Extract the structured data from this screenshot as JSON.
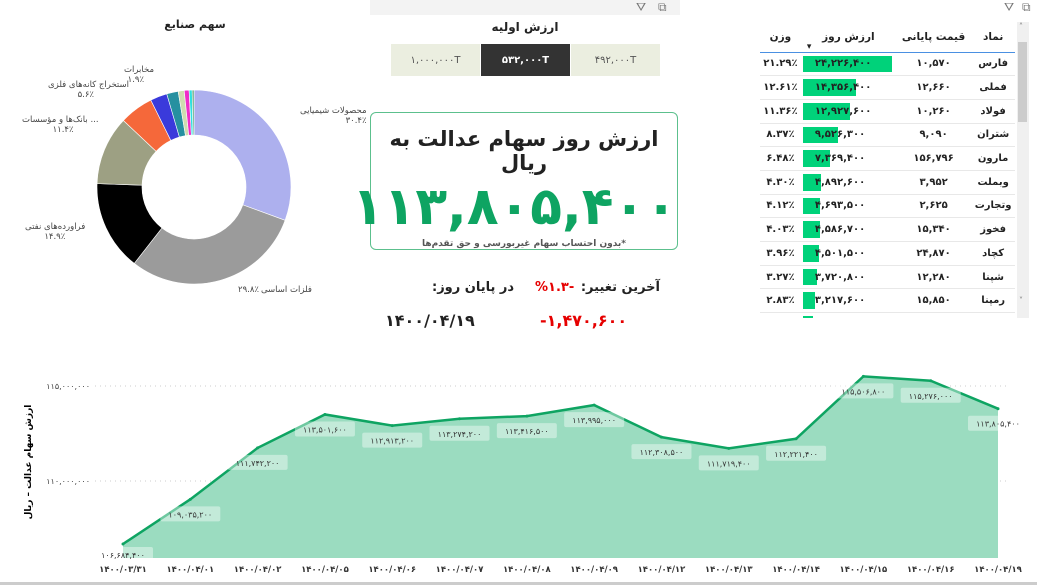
{
  "toolbar": {
    "icons": [
      "filter-icon",
      "focus-mode-icon"
    ]
  },
  "slicer": {
    "title": "ارزش اولیه",
    "options": [
      {
        "label": "۴۹۲,۰۰۰T",
        "selected": false
      },
      {
        "label": "۵۳۲,۰۰۰T",
        "selected": true
      },
      {
        "label": "۱,۰۰۰,۰۰۰T",
        "selected": false
      }
    ]
  },
  "kpi": {
    "title": "ارزش روز سهام عدالت به ریال",
    "value": "۱۱۳,۸۰۵,۴۰۰",
    "note": "*بدون احتساب سهام غیربورسی و حق تقدم‌ها",
    "accent": "#0ea462"
  },
  "change": {
    "last_change_label": "آخرین تغییر:",
    "last_change_pct": "%۱.۳-",
    "end_of_day_label": "در پایان روز:",
    "change_amount": "-۱,۴۷۰,۶۰۰",
    "date": "۱۴۰۰/۰۴/۱۹",
    "negative_color": "#e60000"
  },
  "pie": {
    "title": "سهم صنایع",
    "slices": [
      {
        "name": "محصولات شیمیایی",
        "pct": 30.4,
        "label": "۳۰.۴٪",
        "color": "#adb0ee"
      },
      {
        "name": "فلزات اساسی",
        "pct": 29.8,
        "label": "۲۹.۸٪",
        "color": "#9b9b9b"
      },
      {
        "name": "فراورده‌های نفتی",
        "pct": 14.9,
        "label": "۱۴.۹٪",
        "color": "#000000"
      },
      {
        "name": "... بانک‌ها و مؤسسات",
        "pct": 11.4,
        "label": "۱۱.۴٪",
        "color": "#9da083"
      },
      {
        "name": "استخراج کانه‌های فلزی",
        "pct": 5.6,
        "label": "۵.۶٪",
        "color": "#f5683a"
      },
      {
        "name": "",
        "pct": 2.8,
        "label": "",
        "color": "#3a3adb"
      },
      {
        "name": "مخابرات",
        "pct": 1.9,
        "label": "۱.۹٪",
        "color": "#2690a0"
      },
      {
        "name": "",
        "pct": 1.0,
        "label": "",
        "color": "#cfdcb0"
      },
      {
        "name": "",
        "pct": 0.8,
        "label": "",
        "color": "#f02cc8"
      },
      {
        "name": "",
        "pct": 0.5,
        "label": "",
        "color": "#2ee0e0"
      },
      {
        "name": "",
        "pct": 0.3,
        "label": "",
        "color": "#50a070"
      }
    ]
  },
  "table": {
    "headers": [
      "نماد",
      "قیمت پایانی",
      "ارزش روز",
      "وزن"
    ],
    "sort_column": "ارزش روز",
    "bar_color": "#00d27a",
    "rows": [
      {
        "symbol": "فارس",
        "price": "۱۰,۵۷۰",
        "value": "۲۴,۲۲۶,۴۰۰",
        "v": 24226400,
        "weight": "۲۱.۲۹٪"
      },
      {
        "symbol": "فملی",
        "price": "۱۲,۶۶۰",
        "value": "۱۴,۳۵۶,۴۰۰",
        "v": 14356400,
        "weight": "۱۲.۶۱٪"
      },
      {
        "symbol": "فولاد",
        "price": "۱۰,۲۶۰",
        "value": "۱۲,۹۲۷,۶۰۰",
        "v": 12927600,
        "weight": "۱۱.۳۶٪"
      },
      {
        "symbol": "شتران",
        "price": "۹,۰۹۰",
        "value": "۹,۵۲۶,۳۰۰",
        "v": 9526300,
        "weight": "۸.۳۷٪"
      },
      {
        "symbol": "مارون",
        "price": "۱۵۶,۷۹۶",
        "value": "۷,۳۶۹,۴۰۰",
        "v": 7369400,
        "weight": "۶.۴۸٪"
      },
      {
        "symbol": "وبملت",
        "price": "۳,۹۵۲",
        "value": "۴,۸۹۲,۶۰۰",
        "v": 4892600,
        "weight": "۴.۳۰٪"
      },
      {
        "symbol": "وتجارت",
        "price": "۲,۶۲۵",
        "value": "۴,۶۹۳,۵۰۰",
        "v": 4693500,
        "weight": "۴.۱۲٪"
      },
      {
        "symbol": "فخوز",
        "price": "۱۵,۳۴۰",
        "value": "۴,۵۸۶,۷۰۰",
        "v": 4586700,
        "weight": "۴.۰۳٪"
      },
      {
        "symbol": "کچاد",
        "price": "۲۴,۸۷۰",
        "value": "۴,۵۰۱,۵۰۰",
        "v": 4501500,
        "weight": "۳.۹۶٪"
      },
      {
        "symbol": "شپنا",
        "price": "۱۲,۲۸۰",
        "value": "۳,۷۲۰,۸۰۰",
        "v": 3720800,
        "weight": "۳.۲۷٪"
      },
      {
        "symbol": "رمپنا",
        "price": "۱۵,۸۵۰",
        "value": "۳,۲۱۷,۶۰۰",
        "v": 3217600,
        "weight": "۲.۸۳٪"
      }
    ]
  },
  "chart_data": {
    "type": "area",
    "ylabel": "ارزش سهام عدالت – ریال",
    "ylim": [
      106000000,
      115700000
    ],
    "yticks": [
      {
        "v": 110000000,
        "label": "۱۱۰,۰۰۰,۰۰۰"
      },
      {
        "v": 115000000,
        "label": "۱۱۵,۰۰۰,۰۰۰"
      }
    ],
    "grid": true,
    "line_color": "#0ea462",
    "fill_color": "#9bdcc0",
    "categories": [
      "۱۴۰۰/۰۳/۳۱",
      "۱۴۰۰/۰۴/۰۱",
      "۱۴۰۰/۰۴/۰۲",
      "۱۴۰۰/۰۴/۰۵",
      "۱۴۰۰/۰۴/۰۶",
      "۱۴۰۰/۰۴/۰۷",
      "۱۴۰۰/۰۴/۰۸",
      "۱۴۰۰/۰۴/۰۹",
      "۱۴۰۰/۰۴/۱۲",
      "۱۴۰۰/۰۴/۱۳",
      "۱۴۰۰/۰۴/۱۴",
      "۱۴۰۰/۰۴/۱۵",
      "۱۴۰۰/۰۴/۱۶",
      "۱۴۰۰/۰۴/۱۹"
    ],
    "values": [
      106684400,
      109035200,
      111742200,
      113501600,
      112913200,
      113274200,
      113416500,
      113995000,
      112308500,
      111719400,
      112221400,
      115506800,
      115276000,
      113805400
    ],
    "labels": [
      "۱۰۶,۶۸۴,۴۰۰",
      "۱۰۹,۰۳۵,۲۰۰",
      "۱۱۱,۷۴۲,۲۰۰",
      "۱۱۳,۵۰۱,۶۰۰",
      "۱۱۲,۹۱۳,۲۰۰",
      "۱۱۳,۲۷۴,۲۰۰",
      "۱۱۳,۴۱۶,۵۰۰",
      "۱۱۳,۹۹۵,۰۰۰",
      "۱۱۲,۳۰۸,۵۰۰",
      "۱۱۱,۷۱۹,۴۰۰",
      "۱۱۲,۲۲۱,۴۰۰",
      "۱۱۵,۵۰۶,۸۰۰",
      "۱۱۵,۲۷۶,۰۰۰",
      "۱۱۳,۸۰۵,۴۰۰"
    ]
  }
}
